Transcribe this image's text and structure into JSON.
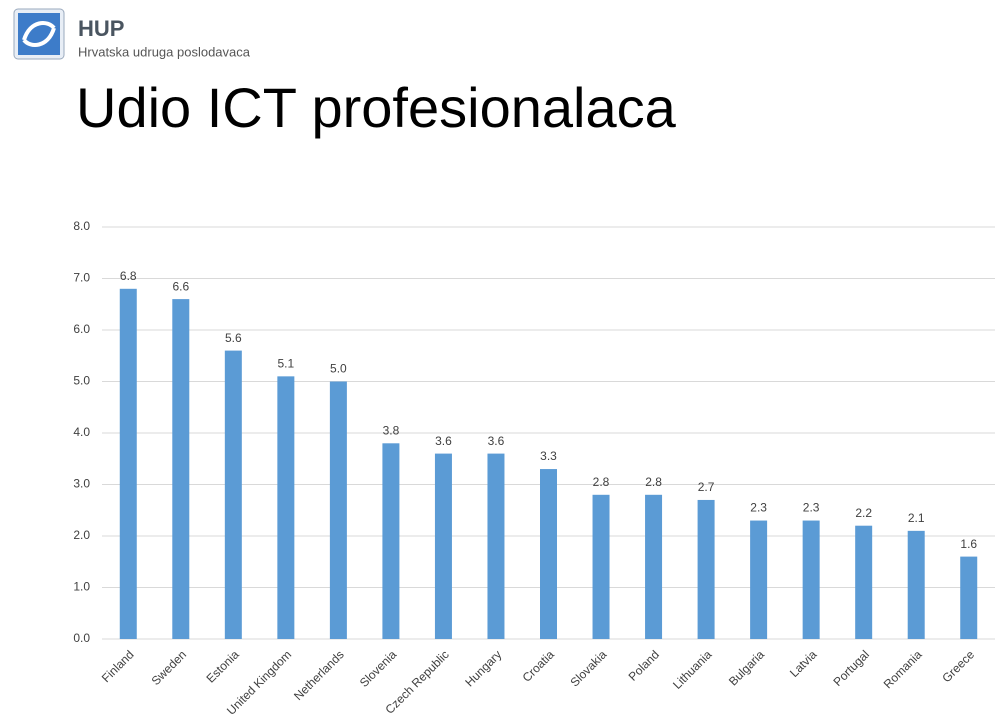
{
  "header": {
    "logo_title": "HUP",
    "logo_subtitle": "Hrvatska udruga poslodavaca"
  },
  "chart_data": {
    "type": "bar",
    "title": "Udio ICT profesionalaca",
    "categories": [
      "Finland",
      "Sweden",
      "Estonia",
      "United Kingdom",
      "Netherlands",
      "Slovenia",
      "Czech Republic",
      "Hungary",
      "Croatia",
      "Slovakia",
      "Poland",
      "Lithuania",
      "Bulgaria",
      "Latvia",
      "Portugal",
      "Romania",
      "Greece"
    ],
    "values": [
      6.8,
      6.6,
      5.6,
      5.1,
      5.0,
      3.8,
      3.6,
      3.6,
      3.3,
      2.8,
      2.8,
      2.7,
      2.3,
      2.3,
      2.2,
      2.1,
      1.6
    ],
    "value_labels": [
      "6.8",
      "6.6",
      "5.6",
      "5.1",
      "5.0",
      "3.8",
      "3.6",
      "3.6",
      "3.3",
      "2.8",
      "2.8",
      "2.7",
      "2.3",
      "2.3",
      "2.2",
      "2.1",
      "1.6"
    ],
    "color": "#5b9bd5",
    "ylim": [
      0,
      8
    ],
    "yticks": [
      {
        "value": 0,
        "label": "0.0"
      },
      {
        "value": 1,
        "label": "1.0"
      },
      {
        "value": 2,
        "label": "2.0"
      },
      {
        "value": 3,
        "label": "3.0"
      },
      {
        "value": 4,
        "label": "4.0"
      },
      {
        "value": 5,
        "label": "5.0"
      },
      {
        "value": 6,
        "label": "6.0"
      },
      {
        "value": 7,
        "label": "7.0"
      },
      {
        "value": 8,
        "label": "8.0"
      }
    ],
    "grid": true
  }
}
